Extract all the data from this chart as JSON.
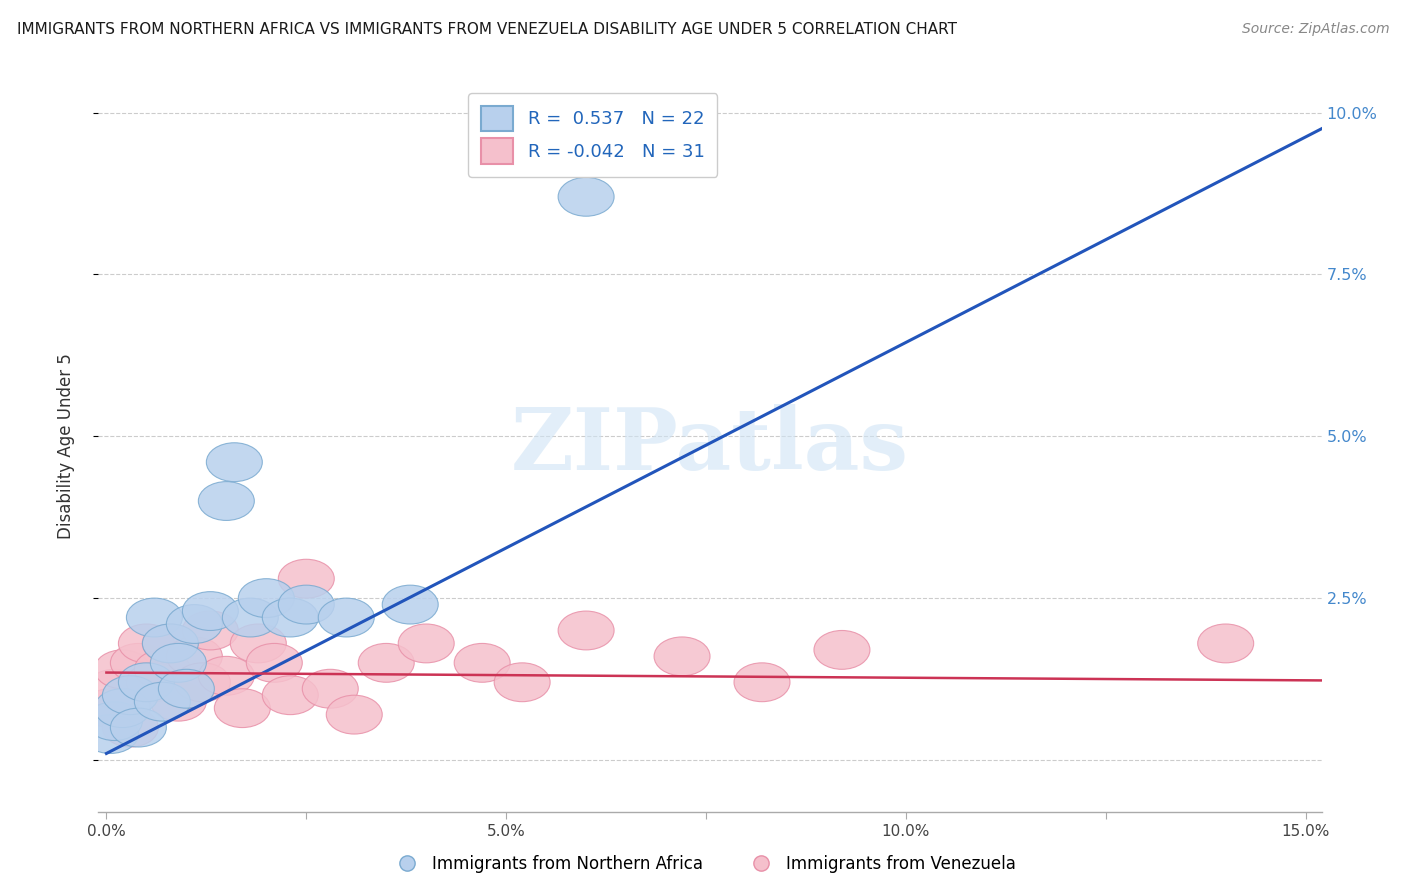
{
  "title": "IMMIGRANTS FROM NORTHERN AFRICA VS IMMIGRANTS FROM VENEZUELA DISABILITY AGE UNDER 5 CORRELATION CHART",
  "source": "Source: ZipAtlas.com",
  "ylabel": "Disability Age Under 5",
  "xlim": [
    -0.001,
    0.152
  ],
  "ylim": [
    -0.008,
    0.105
  ],
  "blue_color": "#b8d0ed",
  "blue_edge_color": "#7aaad0",
  "pink_color": "#f5c0cc",
  "pink_edge_color": "#e890a8",
  "trend_blue": "#2255bb",
  "trend_pink": "#cc3355",
  "legend_R_blue": "0.537",
  "legend_N_blue": "22",
  "legend_R_pink": "-0.042",
  "legend_N_pink": "31",
  "legend_label_blue": "Immigrants from Northern Africa",
  "legend_label_pink": "Immigrants from Venezuela",
  "watermark": "ZIPatlas",
  "blue_x": [
    0.0005,
    0.001,
    0.002,
    0.003,
    0.004,
    0.005,
    0.006,
    0.007,
    0.008,
    0.009,
    0.01,
    0.011,
    0.013,
    0.015,
    0.016,
    0.018,
    0.02,
    0.023,
    0.025,
    0.03,
    0.038,
    0.06
  ],
  "blue_y": [
    0.004,
    0.006,
    0.008,
    0.01,
    0.005,
    0.012,
    0.022,
    0.009,
    0.018,
    0.015,
    0.011,
    0.021,
    0.023,
    0.04,
    0.046,
    0.022,
    0.025,
    0.022,
    0.024,
    0.022,
    0.024,
    0.087
  ],
  "pink_x": [
    0.0005,
    0.001,
    0.002,
    0.003,
    0.004,
    0.005,
    0.006,
    0.007,
    0.008,
    0.009,
    0.01,
    0.011,
    0.012,
    0.013,
    0.015,
    0.017,
    0.019,
    0.021,
    0.023,
    0.025,
    0.028,
    0.031,
    0.035,
    0.04,
    0.047,
    0.052,
    0.06,
    0.072,
    0.082,
    0.092,
    0.14
  ],
  "pink_y": [
    0.008,
    0.011,
    0.014,
    0.005,
    0.015,
    0.018,
    0.012,
    0.014,
    0.018,
    0.009,
    0.011,
    0.016,
    0.012,
    0.02,
    0.013,
    0.008,
    0.018,
    0.015,
    0.01,
    0.028,
    0.011,
    0.007,
    0.015,
    0.018,
    0.015,
    0.012,
    0.02,
    0.016,
    0.012,
    0.017,
    0.018
  ],
  "blue_trend_slope": 0.635,
  "blue_trend_intercept": 0.001,
  "pink_trend_slope": -0.008,
  "pink_trend_intercept": 0.0135,
  "grid_color": "#cccccc",
  "background_color": "#ffffff",
  "yticks": [
    0.0,
    0.025,
    0.05,
    0.075,
    0.1
  ],
  "yticklabels_right": [
    "",
    "2.5%",
    "5.0%",
    "7.5%",
    "10.0%"
  ],
  "xticks": [
    0.0,
    0.025,
    0.05,
    0.075,
    0.1,
    0.125,
    0.15
  ],
  "xticklabels": [
    "0.0%",
    "",
    "5.0%",
    "",
    "10.0%",
    "",
    "15.0%"
  ]
}
